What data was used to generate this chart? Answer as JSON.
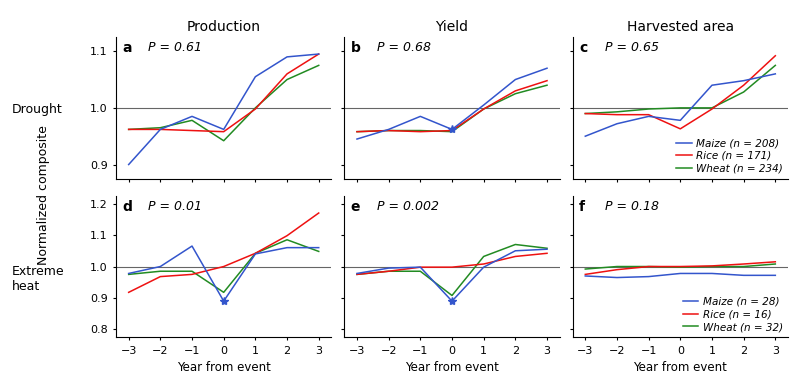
{
  "years": [
    -3,
    -2,
    -1,
    0,
    1,
    2,
    3
  ],
  "drought": {
    "a_production": {
      "maize": [
        0.9,
        0.962,
        0.985,
        0.962,
        1.055,
        1.09,
        1.095
      ],
      "rice": [
        0.962,
        0.962,
        0.96,
        0.958,
        0.998,
        1.06,
        1.095
      ],
      "wheat": [
        0.962,
        0.965,
        0.978,
        0.942,
        1.0,
        1.05,
        1.075
      ]
    },
    "b_yield": {
      "maize": [
        0.945,
        0.962,
        0.985,
        0.962,
        1.005,
        1.05,
        1.07
      ],
      "rice": [
        0.958,
        0.96,
        0.958,
        0.96,
        0.998,
        1.03,
        1.048
      ],
      "wheat": [
        0.958,
        0.96,
        0.96,
        0.958,
        0.998,
        1.025,
        1.04
      ]
    },
    "c_harvested_area": {
      "maize": [
        0.95,
        0.972,
        0.985,
        0.978,
        1.04,
        1.048,
        1.06
      ],
      "rice": [
        0.99,
        0.988,
        0.988,
        0.963,
        0.998,
        1.04,
        1.092
      ],
      "wheat": [
        0.99,
        0.993,
        0.998,
        1.0,
        1.0,
        1.028,
        1.075
      ]
    }
  },
  "extreme_heat": {
    "d_production": {
      "maize": [
        0.978,
        1.0,
        1.065,
        0.89,
        1.04,
        1.06,
        1.06
      ],
      "rice": [
        0.918,
        0.968,
        0.975,
        1.0,
        1.042,
        1.098,
        1.17
      ],
      "wheat": [
        0.975,
        0.985,
        0.985,
        0.918,
        1.042,
        1.085,
        1.048
      ]
    },
    "e_yield": {
      "maize": [
        0.978,
        0.995,
        0.998,
        0.89,
        0.998,
        1.05,
        1.055
      ],
      "rice": [
        0.975,
        0.985,
        0.998,
        0.998,
        1.008,
        1.032,
        1.042
      ],
      "wheat": [
        0.975,
        0.985,
        0.985,
        0.908,
        1.032,
        1.07,
        1.058
      ]
    },
    "f_harvested_area": {
      "maize": [
        0.97,
        0.965,
        0.968,
        0.978,
        0.978,
        0.972,
        0.972
      ],
      "rice": [
        0.975,
        0.99,
        1.0,
        1.0,
        1.002,
        1.008,
        1.015
      ],
      "wheat": [
        0.992,
        1.0,
        1.0,
        0.998,
        1.0,
        1.0,
        1.008
      ]
    }
  },
  "p_values": {
    "a": "P = 0.61",
    "b": "P = 0.68",
    "c": "P = 0.65",
    "d": "P = 0.01",
    "e": "P = 0.002",
    "f": "P = 0.18"
  },
  "col_titles": [
    "Production",
    "Yield",
    "Harvested area"
  ],
  "row_labels": [
    "Drought",
    "Extreme\nheat"
  ],
  "ylabel": "Normalized composite",
  "xlabel": "Year from event",
  "colors": {
    "maize": "#3355CC",
    "rice": "#EE1111",
    "wheat": "#228B22"
  },
  "drought_ylim": [
    0.875,
    1.125
  ],
  "heat_ylim": [
    0.775,
    1.225
  ],
  "drought_yticks": [
    0.9,
    1.0,
    1.1
  ],
  "heat_yticks": [
    0.8,
    0.9,
    1.0,
    1.1,
    1.2
  ],
  "legend_drought": {
    "maize": "Maize (n = 208)",
    "rice": "Rice (n = 171)",
    "wheat": "Wheat (n = 234)"
  },
  "legend_heat": {
    "maize": "Maize (n = 28)",
    "rice": "Rice (n = 16)",
    "wheat": "Wheat (n = 32)"
  },
  "asterisk_panels": {
    "b": "maize",
    "d": "maize",
    "e": "maize"
  }
}
